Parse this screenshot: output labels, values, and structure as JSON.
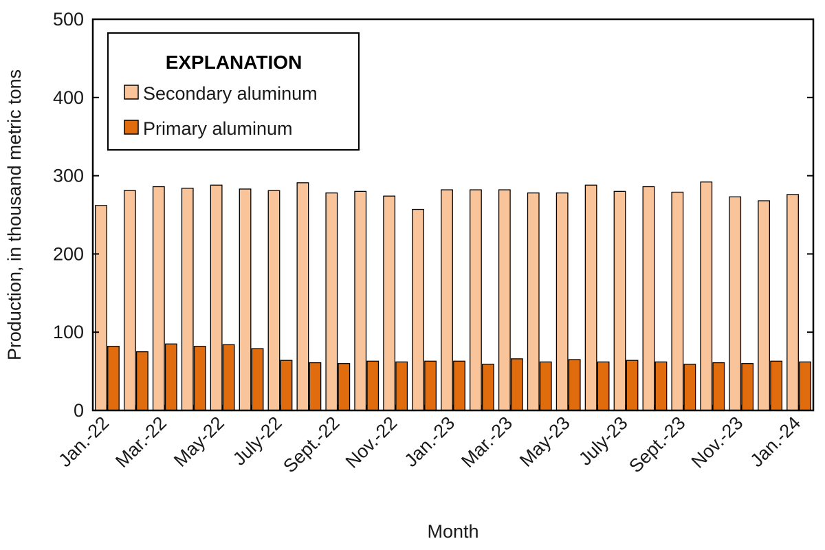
{
  "chart_data": {
    "type": "bar",
    "stacked": false,
    "xlabel": "Month",
    "ylabel": "Production, in thousand metric tons",
    "ylim": [
      0,
      500
    ],
    "yticks": [
      0,
      100,
      200,
      300,
      400,
      500
    ],
    "grid": false,
    "legend": {
      "title": "EXPLANATION",
      "placement": "top-left"
    },
    "categories": [
      "Jan.-22",
      "Feb.-22",
      "Mar.-22",
      "Apr.-22",
      "May-22",
      "June-22",
      "July-22",
      "Aug.-22",
      "Sept.-22",
      "Oct.-22",
      "Nov.-22",
      "Dec.-22",
      "Jan.-23",
      "Feb.-23",
      "Mar.-23",
      "Apr.-23",
      "May-23",
      "June-23",
      "July-23",
      "Aug.-23",
      "Sept.-23",
      "Oct.-23",
      "Nov.-23",
      "Dec.-23",
      "Jan.-24"
    ],
    "tick_labels": [
      "Jan.-22",
      "Mar.-22",
      "May-22",
      "July-22",
      "Sept.-22",
      "Nov.-22",
      "Jan.-23",
      "Mar.-23",
      "May-23",
      "July-23",
      "Sept.-23",
      "Nov.-23",
      "Jan.-24"
    ],
    "series": [
      {
        "name": "Secondary aluminum",
        "color": "#f9c49a",
        "values": [
          262,
          281,
          286,
          284,
          288,
          283,
          281,
          291,
          278,
          280,
          274,
          257,
          282,
          282,
          282,
          278,
          278,
          288,
          280,
          286,
          279,
          292,
          273,
          268,
          276
        ]
      },
      {
        "name": "Primary aluminum",
        "color": "#e06c0d",
        "values": [
          82,
          75,
          85,
          82,
          84,
          79,
          64,
          61,
          60,
          63,
          62,
          63,
          63,
          59,
          66,
          62,
          65,
          62,
          64,
          62,
          59,
          61,
          60,
          63,
          62
        ]
      }
    ]
  }
}
